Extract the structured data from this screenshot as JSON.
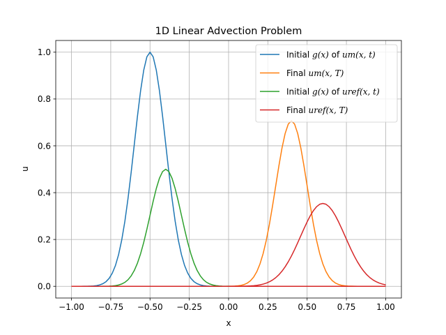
{
  "chart_data": {
    "type": "line",
    "title": "1D Linear Advection Problem",
    "xlabel": "x",
    "ylabel": "u",
    "xlim": [
      -1.1,
      1.1
    ],
    "ylim": [
      -0.05,
      1.05
    ],
    "xticks": [
      -1.0,
      -0.75,
      -0.5,
      -0.25,
      0.0,
      0.25,
      0.5,
      0.75,
      1.0
    ],
    "xtick_labels": [
      "−1.00",
      "−0.75",
      "−0.50",
      "−0.25",
      "0.00",
      "0.25",
      "0.50",
      "0.75",
      "1.00"
    ],
    "yticks": [
      0.0,
      0.2,
      0.4,
      0.6,
      0.8,
      1.0
    ],
    "ytick_labels": [
      "0.0",
      "0.2",
      "0.4",
      "0.6",
      "0.8",
      "1.0"
    ],
    "grid": true,
    "legend_position": "top-right",
    "x_domain": [
      -1.0,
      1.0
    ],
    "num_points": 101,
    "series": [
      {
        "name_parts": [
          {
            "t": "Initial "
          },
          {
            "t": "g(x)",
            "m": true
          },
          {
            "t": " of "
          },
          {
            "t": "um(x, t)",
            "m": true
          }
        ],
        "name": "Initial g(x) of um(x, t)",
        "color": "#1f77b4",
        "shape": "gaussian",
        "amplitude": 1.0,
        "center": -0.5,
        "width": 0.1
      },
      {
        "name_parts": [
          {
            "t": "Final "
          },
          {
            "t": "um(x, T)",
            "m": true
          }
        ],
        "name": "Final um(x, T)",
        "color": "#ff7f0e",
        "shape": "gaussian",
        "amplitude": 0.707,
        "center": 0.4,
        "width": 0.1
      },
      {
        "name_parts": [
          {
            "t": "Initial "
          },
          {
            "t": "g(x)",
            "m": true
          },
          {
            "t": " of "
          },
          {
            "t": "uref(x, t)",
            "m": true
          }
        ],
        "name": "Initial g(x) of uref(x, t)",
        "color": "#2ca02c",
        "shape": "gaussian",
        "amplitude": 0.5,
        "center": -0.4,
        "width": 0.1
      },
      {
        "name_parts": [
          {
            "t": "Final "
          },
          {
            "t": "uref(x, T)",
            "m": true
          }
        ],
        "name": "Final uref(x, T)",
        "color": "#d62728",
        "shape": "gaussian",
        "amplitude": 0.354,
        "center": 0.6,
        "width": 0.141
      },
      {
        "name": "",
        "color": "#d62728",
        "shape": "constant",
        "value": 0.0
      }
    ]
  }
}
